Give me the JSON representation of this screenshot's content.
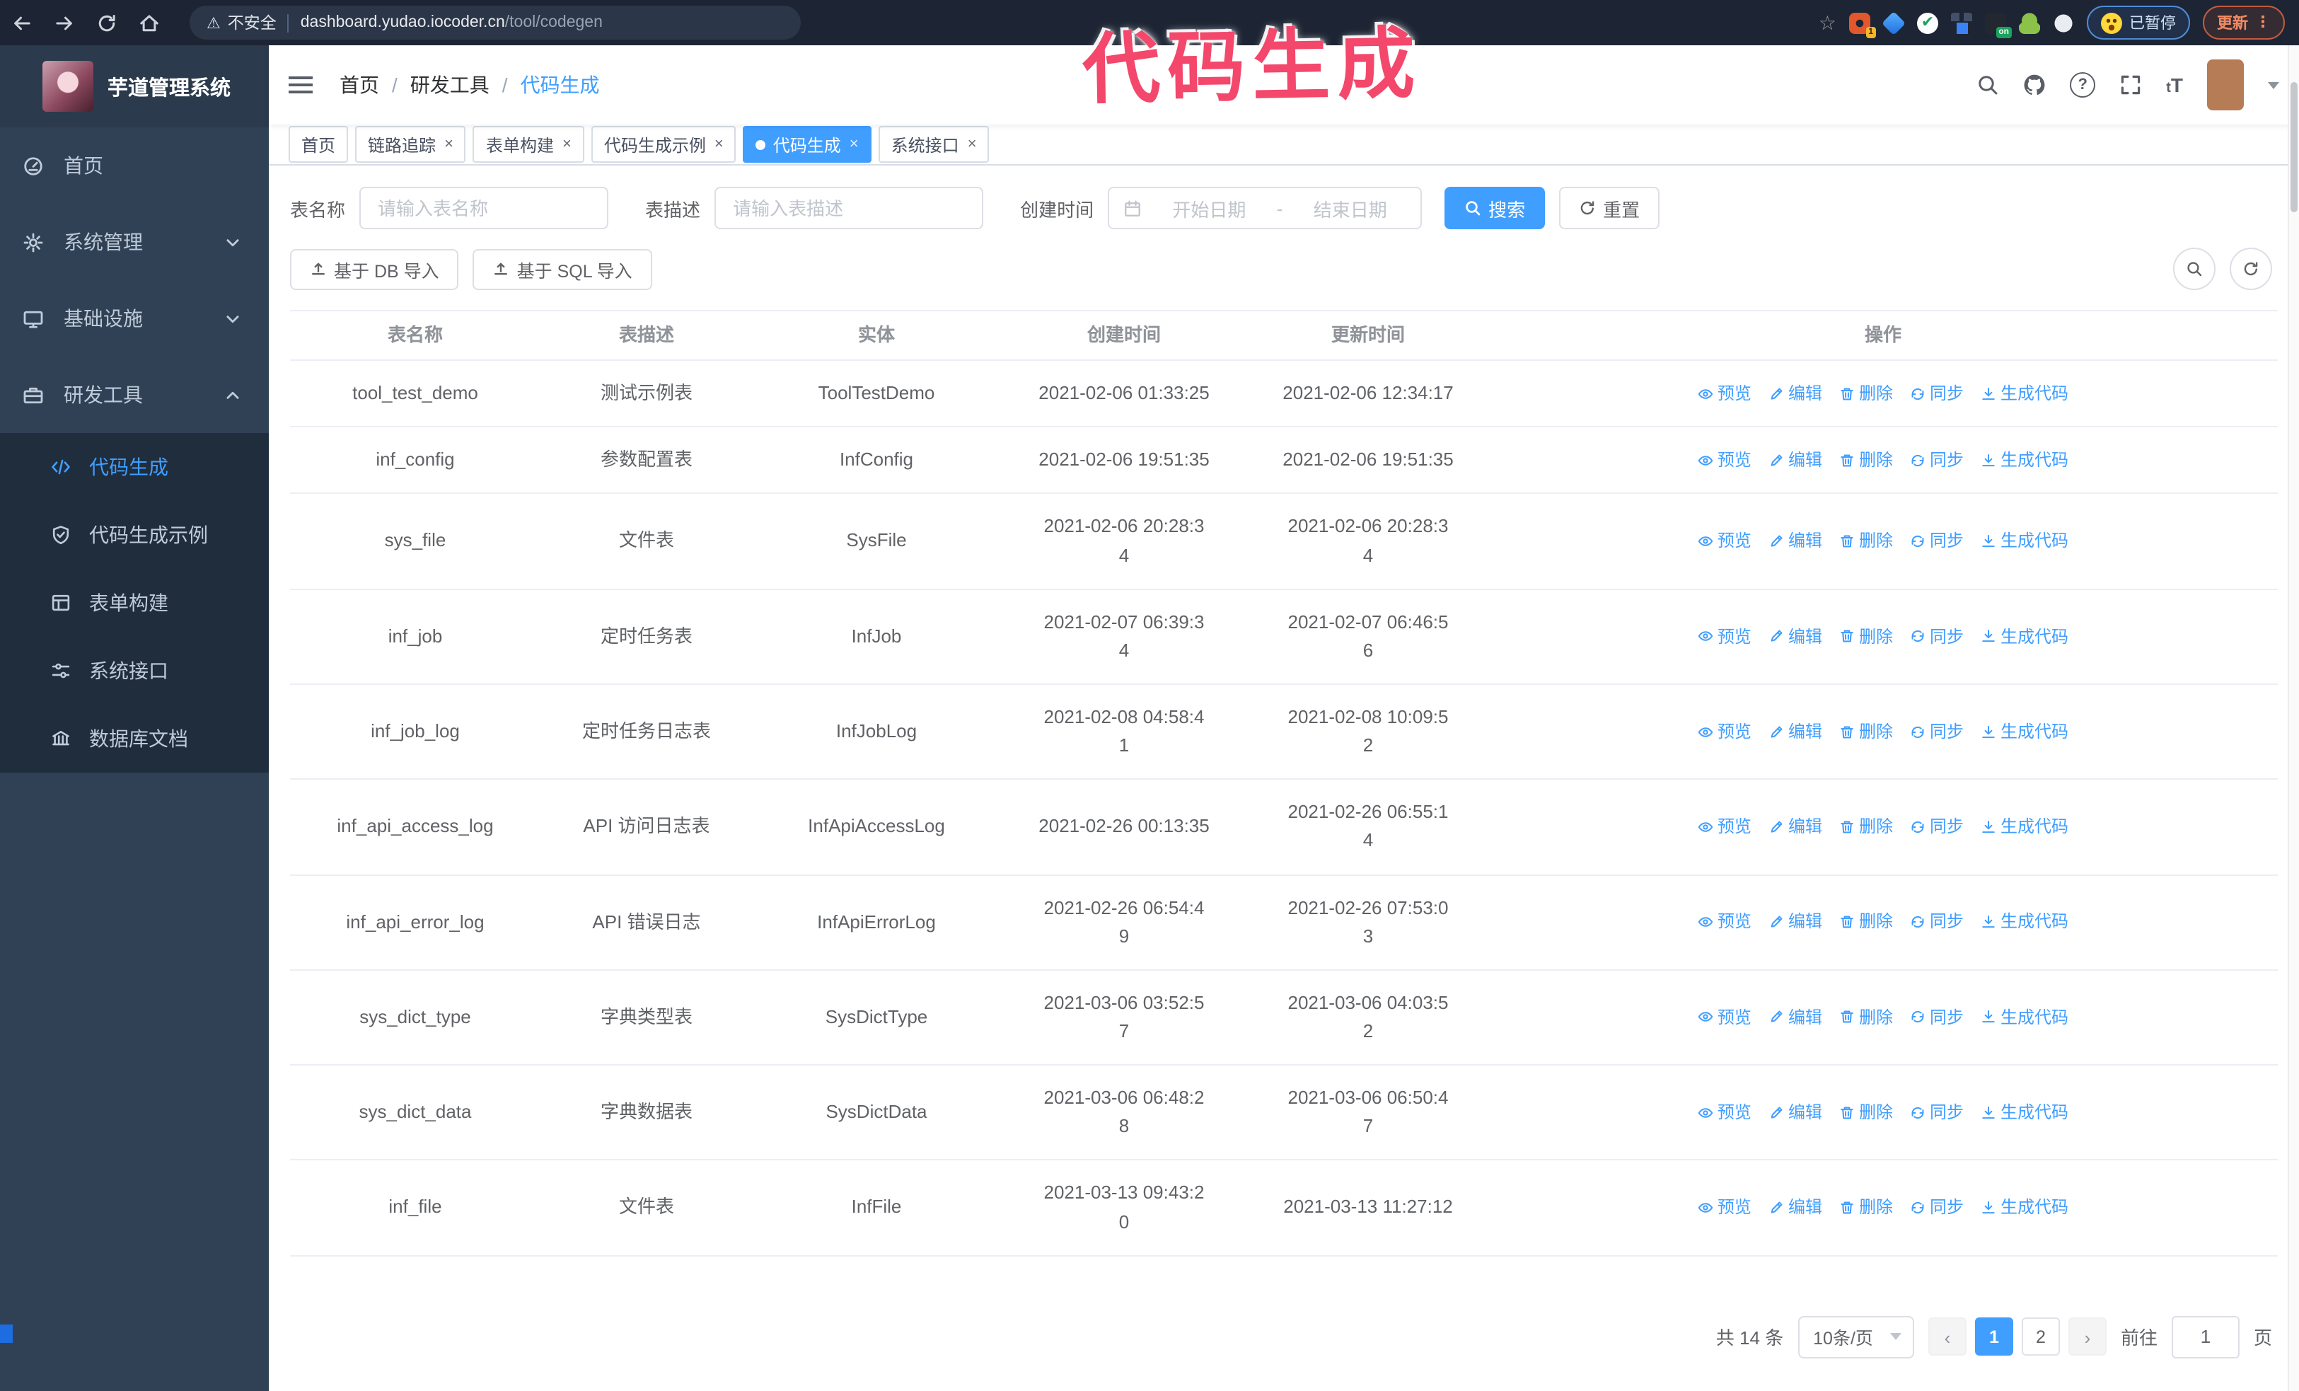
{
  "browser": {
    "security_label": "不安全",
    "url_host": "dashboard.yudao.iocoder.cn",
    "url_path": "/tool/codegen",
    "extension_badge": "1",
    "on_badge": "on",
    "paused_badge": "已暂停",
    "update_label": "更新"
  },
  "annotation": {
    "text": "代码生成"
  },
  "sidebar": {
    "title": "芋道管理系统",
    "menu": [
      {
        "key": "home",
        "label": "首页",
        "icon": "dashboard",
        "chevron": null
      },
      {
        "key": "system",
        "label": "系统管理",
        "icon": "gear",
        "chevron": "down"
      },
      {
        "key": "infra",
        "label": "基础设施",
        "icon": "monitor",
        "chevron": "down"
      },
      {
        "key": "devtools",
        "label": "研发工具",
        "icon": "toolbox",
        "chevron": "up"
      }
    ],
    "submenu": [
      {
        "key": "codegen",
        "label": "代码生成",
        "icon": "code",
        "active": true
      },
      {
        "key": "codegen-demo",
        "label": "代码生成示例",
        "icon": "shield",
        "active": false
      },
      {
        "key": "form-builder",
        "label": "表单构建",
        "icon": "form",
        "active": false
      },
      {
        "key": "system-api",
        "label": "系统接口",
        "icon": "sliders",
        "active": false
      },
      {
        "key": "db-doc",
        "label": "数据库文档",
        "icon": "dbdoc",
        "active": false
      }
    ]
  },
  "breadcrumb": [
    "首页",
    "研发工具",
    "代码生成"
  ],
  "tabs": [
    {
      "label": "首页",
      "closable": false,
      "active": false
    },
    {
      "label": "链路追踪",
      "closable": true,
      "active": false
    },
    {
      "label": "表单构建",
      "closable": true,
      "active": false
    },
    {
      "label": "代码生成示例",
      "closable": true,
      "active": false
    },
    {
      "label": "代码生成",
      "closable": true,
      "active": true
    },
    {
      "label": "系统接口",
      "closable": true,
      "active": false
    }
  ],
  "search": {
    "name_label": "表名称",
    "name_placeholder": "请输入表名称",
    "desc_label": "表描述",
    "desc_placeholder": "请输入表描述",
    "time_label": "创建时间",
    "start_placeholder": "开始日期",
    "range_separator": "-",
    "end_placeholder": "结束日期",
    "search_button": "搜索",
    "reset_button": "重置"
  },
  "toolbar": {
    "import_db_label": "基于 DB 导入",
    "import_sql_label": "基于 SQL 导入"
  },
  "table": {
    "columns": [
      "表名称",
      "表描述",
      "实体",
      "创建时间",
      "更新时间",
      "操作"
    ],
    "action_labels": [
      "预览",
      "编辑",
      "删除",
      "同步",
      "生成代码"
    ],
    "rows": [
      {
        "name": "tool_test_demo",
        "desc": "测试示例表",
        "entity": "ToolTestDemo",
        "created": "2021-02-06 01:33:25",
        "updated": "2021-02-06 12:34:17"
      },
      {
        "name": "inf_config",
        "desc": "参数配置表",
        "entity": "InfConfig",
        "created": "2021-02-06 19:51:35",
        "updated": "2021-02-06 19:51:35"
      },
      {
        "name": "sys_file",
        "desc": "文件表",
        "entity": "SysFile",
        "created": "2021-02-06 20:28:3\n4",
        "updated": "2021-02-06 20:28:3\n4"
      },
      {
        "name": "inf_job",
        "desc": "定时任务表",
        "entity": "InfJob",
        "created": "2021-02-07 06:39:3\n4",
        "updated": "2021-02-07 06:46:5\n6"
      },
      {
        "name": "inf_job_log",
        "desc": "定时任务日志表",
        "entity": "InfJobLog",
        "created": "2021-02-08 04:58:4\n1",
        "updated": "2021-02-08 10:09:5\n2"
      },
      {
        "name": "inf_api_access_log",
        "desc": "API 访问日志表",
        "entity": "InfApiAccessLog",
        "created": "2021-02-26 00:13:35",
        "updated": "2021-02-26 06:55:1\n4"
      },
      {
        "name": "inf_api_error_log",
        "desc": "API 错误日志",
        "entity": "InfApiErrorLog",
        "created": "2021-02-26 06:54:4\n9",
        "updated": "2021-02-26 07:53:0\n3"
      },
      {
        "name": "sys_dict_type",
        "desc": "字典类型表",
        "entity": "SysDictType",
        "created": "2021-03-06 03:52:5\n7",
        "updated": "2021-03-06 04:03:5\n2"
      },
      {
        "name": "sys_dict_data",
        "desc": "字典数据表",
        "entity": "SysDictData",
        "created": "2021-03-06 06:48:2\n8",
        "updated": "2021-03-06 06:50:4\n7"
      },
      {
        "name": "inf_file",
        "desc": "文件表",
        "entity": "InfFile",
        "created": "2021-03-13 09:43:2\n0",
        "updated": "2021-03-13 11:27:12"
      }
    ]
  },
  "pagination": {
    "total_label": "共 14 条",
    "page_size_label": "10条/页",
    "pages": [
      "1",
      "2"
    ],
    "active_page": "1",
    "goto_label": "前往",
    "goto_value": "1",
    "page_suffix": "页"
  },
  "colors": {
    "primary": "#409eff",
    "annotation": "#f3476b",
    "sidebar_bg": "#304156",
    "submenu_bg": "#1f2d3d",
    "chrome_bg": "#1d2534",
    "update_accent": "#f08a63"
  }
}
